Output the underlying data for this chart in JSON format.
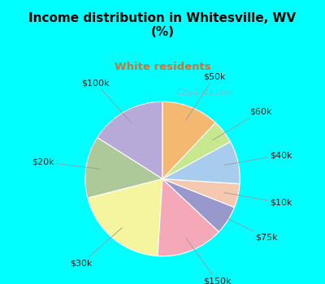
{
  "title": "Income distribution in Whitesville, WV\n(%)",
  "subtitle": "White residents",
  "title_color": "#000000",
  "subtitle_color": "#c07840",
  "background_cyan": "#00FFFF",
  "background_inner": "#d8ede5",
  "labels": [
    "$100k",
    "$20k",
    "$30k",
    "$150k",
    "$75k",
    "$10k",
    "$40k",
    "$60k",
    "$50k"
  ],
  "sizes": [
    16,
    13,
    20,
    14,
    6,
    5,
    9,
    5,
    12
  ],
  "colors": [
    "#b8aad8",
    "#adc99a",
    "#f5f5a0",
    "#f4a8b8",
    "#9898cc",
    "#f5c8b0",
    "#a8ccee",
    "#c8e890",
    "#f5b870"
  ],
  "startangle": 90,
  "label_fontsize": 8,
  "watermark": "City-Data.com"
}
